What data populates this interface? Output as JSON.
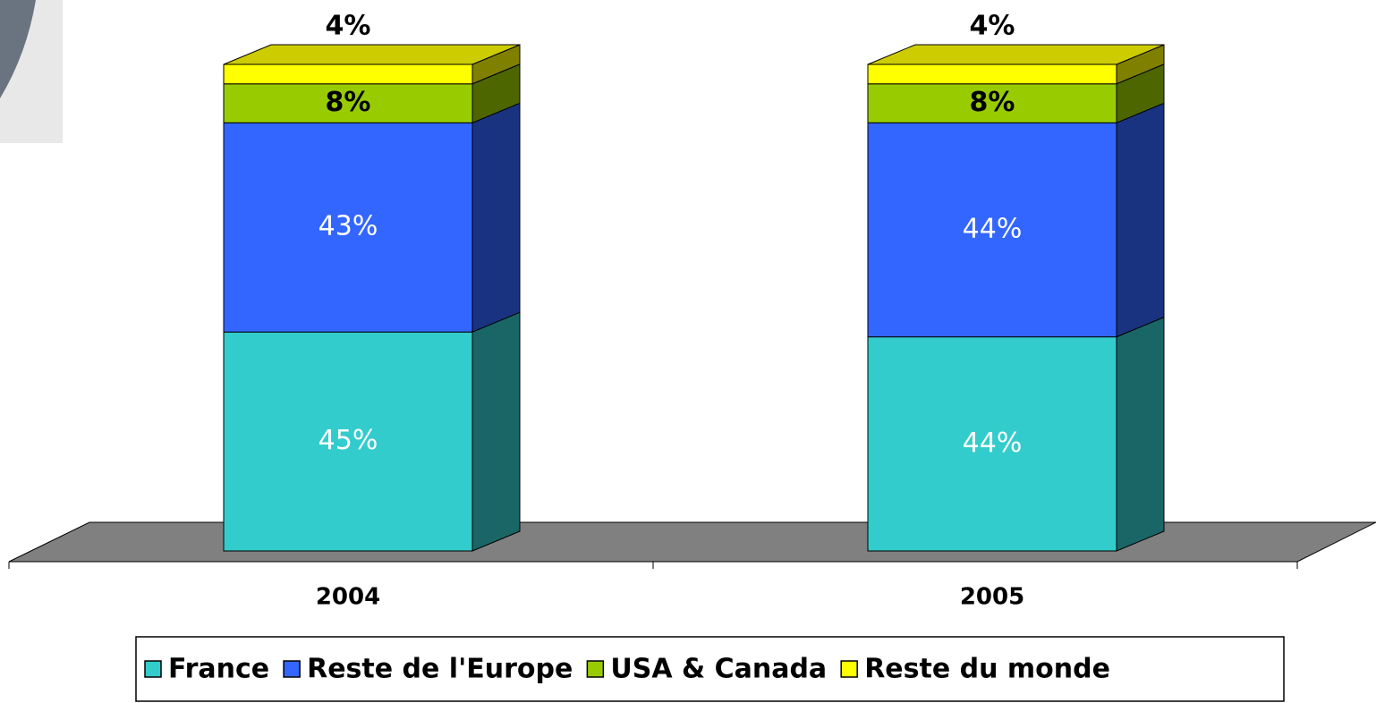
{
  "chart_data": {
    "type": "bar3d_stacked",
    "categories": [
      "2004",
      "2005"
    ],
    "series": [
      {
        "name": "France",
        "color": "#33cccc",
        "label_color": "#ffffff",
        "values": [
          45,
          44
        ],
        "value_labels": [
          "45%",
          "44%"
        ]
      },
      {
        "name": "Reste de l'Europe",
        "color": "#3366ff",
        "label_color": "#ffffff",
        "values": [
          43,
          44
        ],
        "value_labels": [
          "43%",
          "44%"
        ]
      },
      {
        "name": "USA & Canada",
        "color": "#99cc00",
        "label_color": "#000000",
        "values": [
          8,
          8
        ],
        "value_labels": [
          "8%",
          "8%"
        ]
      },
      {
        "name": "Reste du monde",
        "color": "#ffff00",
        "label_color": "#000000",
        "values": [
          4,
          4
        ],
        "value_labels": [
          "4%",
          "4%"
        ]
      }
    ],
    "legend": "bottom"
  }
}
